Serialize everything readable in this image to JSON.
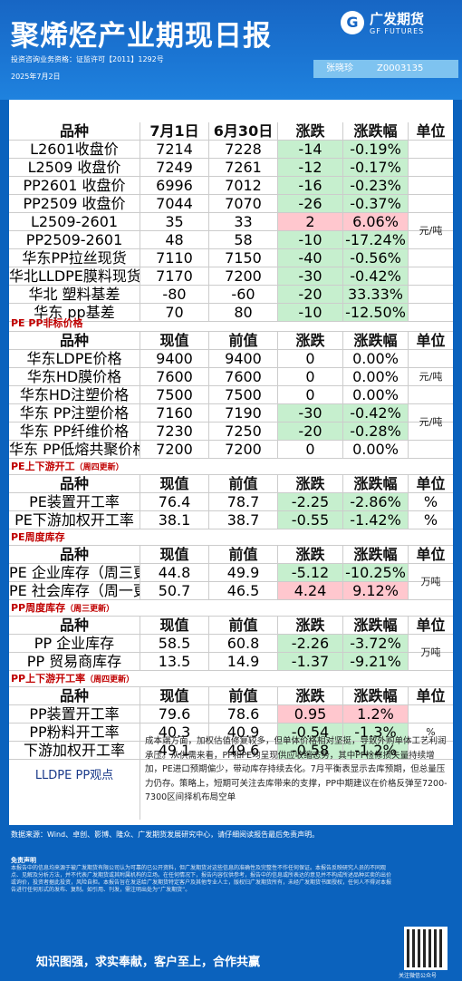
{
  "header": {
    "title": "聚烯烃产业期现日报",
    "logo_cn": "广发期货",
    "logo_en": "GF FUTURES",
    "qualification": "投资咨询业务资格：证监许可【2011】1292号",
    "date": "2025年7月2日",
    "author": "张晓珍",
    "license": "Z0003135"
  },
  "colors": {
    "header_bg": "#1766c4",
    "up": "#ffc7ce",
    "down": "#c6efce",
    "section_title": "#c00000"
  },
  "table1": {
    "headers": [
      "品种",
      "7月1日",
      "6月30日",
      "涨跌",
      "涨跌幅",
      "单位"
    ],
    "unit": "元/吨",
    "rows": [
      [
        "L2601收盘价",
        "7214",
        "7228",
        "-14",
        "-0.19%"
      ],
      [
        "L2509 收盘价",
        "7249",
        "7261",
        "-12",
        "-0.17%"
      ],
      [
        "PP2601 收盘价",
        "6996",
        "7012",
        "-16",
        "-0.23%"
      ],
      [
        "PP2509 收盘价",
        "7044",
        "7070",
        "-26",
        "-0.37%"
      ],
      [
        "L2509-2601",
        "35",
        "33",
        "2",
        "6.06%"
      ],
      [
        "PP2509-2601",
        "48",
        "58",
        "-10",
        "-17.24%"
      ],
      [
        "华东PP拉丝现货",
        "7110",
        "7150",
        "-40",
        "-0.56%"
      ],
      [
        "华北LLDPE膜料现货",
        "7170",
        "7200",
        "-30",
        "-0.42%"
      ],
      [
        "华北 塑料基差",
        "-80",
        "-60",
        "-20",
        "33.33%"
      ],
      [
        "华东 pp基差",
        "70",
        "80",
        "-10",
        "-12.50%"
      ]
    ]
  },
  "table2": {
    "title": "PE PP非标价格",
    "headers": [
      "品种",
      "现值",
      "前值",
      "涨跌",
      "涨跌幅",
      "单位"
    ],
    "unit_a": "元/吨",
    "unit_b": "元/吨",
    "rows": [
      [
        "华东LDPE价格",
        "9400",
        "9400",
        "0",
        "0.00%"
      ],
      [
        "华东HD膜价格",
        "7600",
        "7600",
        "0",
        "0.00%"
      ],
      [
        "华东HD注塑价格",
        "7500",
        "7500",
        "0",
        "0.00%"
      ],
      [
        "华东 PP注塑价格",
        "7160",
        "7190",
        "-30",
        "-0.42%"
      ],
      [
        "华东 PP纤维价格",
        "7230",
        "7250",
        "-20",
        "-0.28%"
      ],
      [
        "华东 PP低熔共聚价格",
        "7200",
        "7200",
        "0",
        "0.00%"
      ]
    ]
  },
  "table3": {
    "title": "PE上下游开工",
    "note": "（周四更新）",
    "headers": [
      "品种",
      "现值",
      "前值",
      "涨跌",
      "涨跌幅",
      "单位"
    ],
    "rows": [
      [
        "PE装置开工率",
        "76.4",
        "78.7",
        "-2.25",
        "-2.86%",
        "%"
      ],
      [
        "PE下游加权开工率",
        "38.1",
        "38.7",
        "-0.55",
        "-1.42%",
        "%"
      ]
    ]
  },
  "table4": {
    "title": "PE周度库存",
    "headers": [
      "品种",
      "现值",
      "前值",
      "涨跌",
      "涨跌幅",
      "单位"
    ],
    "unit": "万吨",
    "rows": [
      [
        "PE 企业库存（周三更新）",
        "44.8",
        "49.9",
        "-5.12",
        "-10.25%"
      ],
      [
        "PE 社会库存（周一更新）",
        "50.7",
        "46.5",
        "4.24",
        "9.12%"
      ]
    ]
  },
  "table5": {
    "title": "PP周度库存",
    "note": "（周三更新）",
    "headers": [
      "品种",
      "现值",
      "前值",
      "涨跌",
      "涨跌幅",
      "单位"
    ],
    "unit": "万吨",
    "rows": [
      [
        "PP 企业库存",
        "58.5",
        "60.8",
        "-2.26",
        "-3.72%"
      ],
      [
        "PP 贸易商库存",
        "13.5",
        "14.9",
        "-1.37",
        "-9.21%"
      ]
    ]
  },
  "table6": {
    "title": "PP上下游开工率",
    "note": "（周四更新）",
    "headers": [
      "品种",
      "现值",
      "前值",
      "涨跌",
      "涨跌幅",
      "单位"
    ],
    "unit": "%",
    "rows": [
      [
        "PP装置开工率",
        "79.6",
        "78.6",
        "0.95",
        "1.2%"
      ],
      [
        "PP粉料开工率",
        "40.3",
        "40.9",
        "-0.54",
        "-1.3%"
      ],
      [
        "下游加权开工率",
        "49.1",
        "49.6",
        "-0.58",
        "-1.2%"
      ]
    ]
  },
  "view": {
    "label": "LLDPE  PP观点",
    "text": "成本端方面，加权估值修复较多，但单体价格相对坚挺，导致外购单体工艺利润承压。从供需来看，PP和PE均呈现供应收缩态势，其中PP检修损失量持续增加，PE进口预期偏少，带动库存持续去化。7月平衡表显示去库预期，但总量压力仍存。策略上，短期可关注去库带来的支撑，PP中期建议在价格反弹至7200-7300区间择机布局空单"
  },
  "footer": {
    "source": "数据来源：Wind、卓创、影博、隆众、广发期货发展研究中心，请仔细阅读报告最后免责声明。",
    "disclaimer_title": "免责声明",
    "disclaimer": "本报告中的信息均来源于被广发期货有限公司认为可靠的已公开资料，但广发期货对这些信息的准确性及完整性不作任何保证。本报告反映研究人员的不同观点、见解及分析方法，并不代表广发期货或其附属机构的立场。在任何情况下，报告内容仅供参考，报告中的信息或所表达的意见并不构成所述品种买卖的出价或询价，投资者据此投资，风险自担。本报告旨在发送给广发期货特定客户及其他专业人士，版权归广发期货所有，未经广发期货书面授权，任何人不得对本报告进行任何形式的发布、复制。如引用、刊发，需注明出处为“广发期货”。",
    "slogan": "知识图强，求实奉献，客户至上，合作共赢",
    "qr_caption": "关注微信公众号"
  }
}
